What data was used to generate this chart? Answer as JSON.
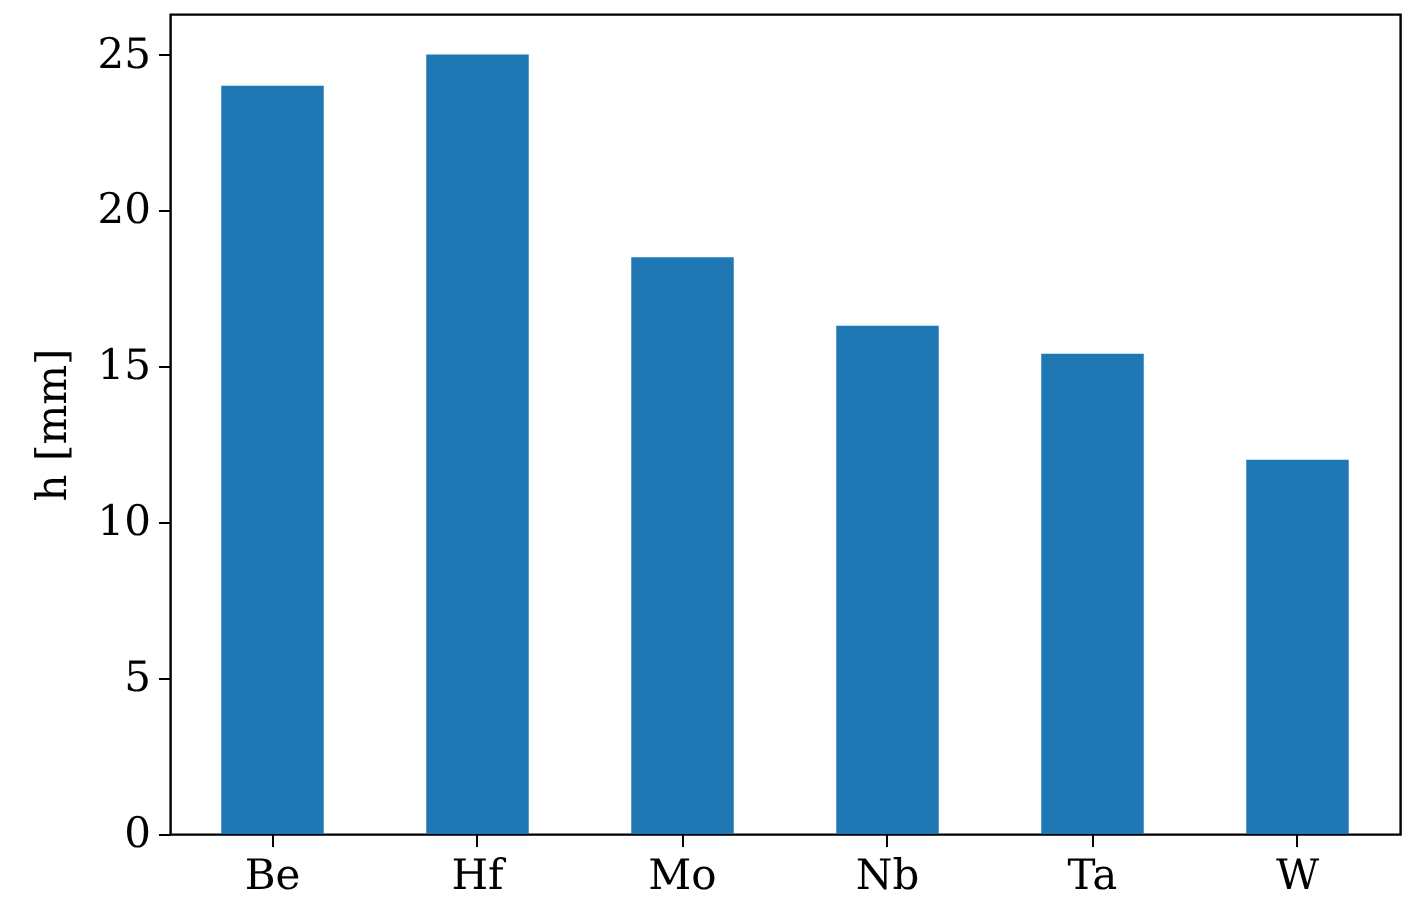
{
  "chart_data": {
    "type": "bar",
    "ylabel": "h [mm]",
    "categories": [
      "Be",
      "Hf",
      "Mo",
      "Nb",
      "Ta",
      "W"
    ],
    "values": [
      24,
      25,
      18.5,
      16.3,
      15.4,
      12
    ],
    "color": "#1f77b4",
    "ylim": [
      0,
      26.3
    ],
    "yticks": [
      0,
      5,
      10,
      15,
      20,
      25
    ],
    "grid": false
  }
}
